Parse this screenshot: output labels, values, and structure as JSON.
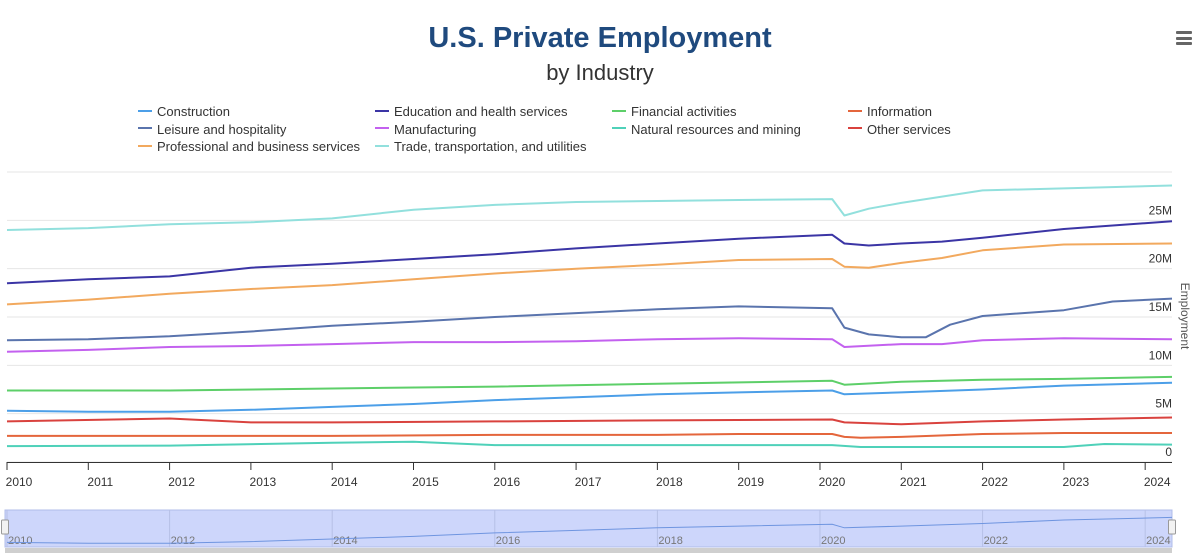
{
  "header": {
    "title": "U.S. Private Employment",
    "subtitle": "by Industry",
    "menu_icon": "hamburger-icon"
  },
  "chart_data": {
    "type": "line",
    "title": "U.S. Private Employment",
    "subtitle": "by Industry",
    "xlabel": "",
    "ylabel": "Employment",
    "xlim": [
      2010,
      2024.33
    ],
    "ylim": [
      0,
      30000000
    ],
    "x_ticks": [
      "2010",
      "2011",
      "2012",
      "2013",
      "2014",
      "2015",
      "2016",
      "2017",
      "2018",
      "2019",
      "2020",
      "2021",
      "2022",
      "2023",
      "2024"
    ],
    "y_ticks": [
      "0",
      "5M",
      "10M",
      "15M",
      "20M",
      "25M"
    ],
    "y_tick_values": [
      0,
      5,
      10,
      15,
      20,
      25
    ],
    "units": "millions",
    "grid": true,
    "legend_placement": "top",
    "navigator_ticks": [
      "2010",
      "2012",
      "2014",
      "2016",
      "2018",
      "2020",
      "2022",
      "2024"
    ],
    "series": [
      {
        "name": "Construction",
        "color": "#4c9fe8",
        "points": [
          [
            2010,
            5.3
          ],
          [
            2011,
            5.2
          ],
          [
            2012,
            5.2
          ],
          [
            2013,
            5.4
          ],
          [
            2014,
            5.7
          ],
          [
            2015,
            6.0
          ],
          [
            2016,
            6.4
          ],
          [
            2017,
            6.7
          ],
          [
            2018,
            7.0
          ],
          [
            2019,
            7.2
          ],
          [
            2020.15,
            7.4
          ],
          [
            2020.3,
            7.0
          ],
          [
            2021,
            7.2
          ],
          [
            2022,
            7.5
          ],
          [
            2023,
            7.9
          ],
          [
            2024.33,
            8.2
          ]
        ]
      },
      {
        "name": "Education and health services",
        "color": "#3b35a5",
        "points": [
          [
            2010,
            18.5
          ],
          [
            2011,
            18.9
          ],
          [
            2012,
            19.2
          ],
          [
            2013,
            20.1
          ],
          [
            2014,
            20.5
          ],
          [
            2015,
            21.0
          ],
          [
            2016,
            21.5
          ],
          [
            2017,
            22.1
          ],
          [
            2018,
            22.6
          ],
          [
            2019,
            23.1
          ],
          [
            2020.15,
            23.5
          ],
          [
            2020.3,
            22.6
          ],
          [
            2020.6,
            22.4
          ],
          [
            2021,
            22.6
          ],
          [
            2021.5,
            22.8
          ],
          [
            2022,
            23.2
          ],
          [
            2023,
            24.1
          ],
          [
            2024.33,
            24.9
          ]
        ]
      },
      {
        "name": "Financial activities",
        "color": "#5dcf69",
        "points": [
          [
            2010,
            7.4
          ],
          [
            2012,
            7.4
          ],
          [
            2014,
            7.6
          ],
          [
            2016,
            7.8
          ],
          [
            2018,
            8.1
          ],
          [
            2020.15,
            8.4
          ],
          [
            2020.3,
            8.0
          ],
          [
            2021,
            8.3
          ],
          [
            2022,
            8.5
          ],
          [
            2023,
            8.6
          ],
          [
            2024.33,
            8.8
          ]
        ]
      },
      {
        "name": "Information",
        "color": "#e4663c",
        "points": [
          [
            2010,
            2.7
          ],
          [
            2014,
            2.7
          ],
          [
            2016,
            2.8
          ],
          [
            2018,
            2.8
          ],
          [
            2019,
            2.9
          ],
          [
            2020.15,
            2.9
          ],
          [
            2020.3,
            2.6
          ],
          [
            2020.5,
            2.5
          ],
          [
            2021,
            2.6
          ],
          [
            2022,
            2.9
          ],
          [
            2023,
            3.0
          ],
          [
            2024.33,
            3.0
          ]
        ]
      },
      {
        "name": "Leisure and hospitality",
        "color": "#5a74ad",
        "points": [
          [
            2010,
            12.6
          ],
          [
            2011,
            12.7
          ],
          [
            2012,
            13.0
          ],
          [
            2013,
            13.5
          ],
          [
            2014,
            14.1
          ],
          [
            2015,
            14.5
          ],
          [
            2016,
            15.0
          ],
          [
            2017,
            15.4
          ],
          [
            2018,
            15.8
          ],
          [
            2019,
            16.1
          ],
          [
            2020.15,
            15.9
          ],
          [
            2020.3,
            13.9
          ],
          [
            2020.6,
            13.2
          ],
          [
            2021,
            12.9
          ],
          [
            2021.3,
            12.9
          ],
          [
            2021.6,
            14.2
          ],
          [
            2022,
            15.1
          ],
          [
            2023,
            15.7
          ],
          [
            2023.6,
            16.6
          ],
          [
            2024.33,
            16.9
          ]
        ]
      },
      {
        "name": "Manufacturing",
        "color": "#c361ef",
        "points": [
          [
            2010,
            11.4
          ],
          [
            2011,
            11.6
          ],
          [
            2012,
            11.9
          ],
          [
            2013,
            12.0
          ],
          [
            2014,
            12.2
          ],
          [
            2015,
            12.4
          ],
          [
            2016,
            12.4
          ],
          [
            2017,
            12.5
          ],
          [
            2018,
            12.7
          ],
          [
            2019,
            12.8
          ],
          [
            2020.15,
            12.7
          ],
          [
            2020.3,
            11.9
          ],
          [
            2021,
            12.2
          ],
          [
            2021.5,
            12.2
          ],
          [
            2022,
            12.6
          ],
          [
            2023,
            12.8
          ],
          [
            2024.33,
            12.7
          ]
        ]
      },
      {
        "name": "Natural resources and mining",
        "color": "#4fd1b9",
        "points": [
          [
            2010,
            1.65
          ],
          [
            2012,
            1.7
          ],
          [
            2014,
            2.0
          ],
          [
            2015,
            2.1
          ],
          [
            2016,
            1.75
          ],
          [
            2017,
            1.75
          ],
          [
            2019,
            1.75
          ],
          [
            2020.15,
            1.75
          ],
          [
            2020.5,
            1.55
          ],
          [
            2022,
            1.55
          ],
          [
            2023,
            1.55
          ],
          [
            2023.5,
            1.86
          ],
          [
            2024.33,
            1.8
          ]
        ]
      },
      {
        "name": "Other services",
        "color": "#d9423e",
        "points": [
          [
            2010,
            4.2
          ],
          [
            2012,
            4.5
          ],
          [
            2013,
            4.1
          ],
          [
            2014,
            4.1
          ],
          [
            2016,
            4.2
          ],
          [
            2018,
            4.3
          ],
          [
            2020.15,
            4.4
          ],
          [
            2020.3,
            4.1
          ],
          [
            2021,
            3.9
          ],
          [
            2022,
            4.2
          ],
          [
            2023,
            4.4
          ],
          [
            2024.33,
            4.6
          ]
        ]
      },
      {
        "name": "Professional and business services",
        "color": "#f2a95e",
        "points": [
          [
            2010,
            16.3
          ],
          [
            2011,
            16.8
          ],
          [
            2012,
            17.4
          ],
          [
            2013,
            17.9
          ],
          [
            2014,
            18.3
          ],
          [
            2015,
            18.9
          ],
          [
            2016,
            19.5
          ],
          [
            2017,
            20.0
          ],
          [
            2018,
            20.4
          ],
          [
            2019,
            20.9
          ],
          [
            2020.15,
            21.0
          ],
          [
            2020.3,
            20.2
          ],
          [
            2020.6,
            20.1
          ],
          [
            2021,
            20.6
          ],
          [
            2021.5,
            21.1
          ],
          [
            2022,
            21.9
          ],
          [
            2023,
            22.5
          ],
          [
            2024.33,
            22.6
          ]
        ]
      },
      {
        "name": "Trade, transportation, and utilities",
        "color": "#92e0dd",
        "points": [
          [
            2010,
            24.0
          ],
          [
            2011,
            24.2
          ],
          [
            2012,
            24.6
          ],
          [
            2013,
            24.8
          ],
          [
            2014,
            25.2
          ],
          [
            2015,
            26.1
          ],
          [
            2016,
            26.6
          ],
          [
            2017,
            26.9
          ],
          [
            2018,
            27.0
          ],
          [
            2019,
            27.1
          ],
          [
            2020.15,
            27.2
          ],
          [
            2020.3,
            25.5
          ],
          [
            2020.6,
            26.2
          ],
          [
            2021,
            26.8
          ],
          [
            2022,
            28.1
          ],
          [
            2023,
            28.3
          ],
          [
            2024.33,
            28.6
          ]
        ]
      }
    ]
  }
}
